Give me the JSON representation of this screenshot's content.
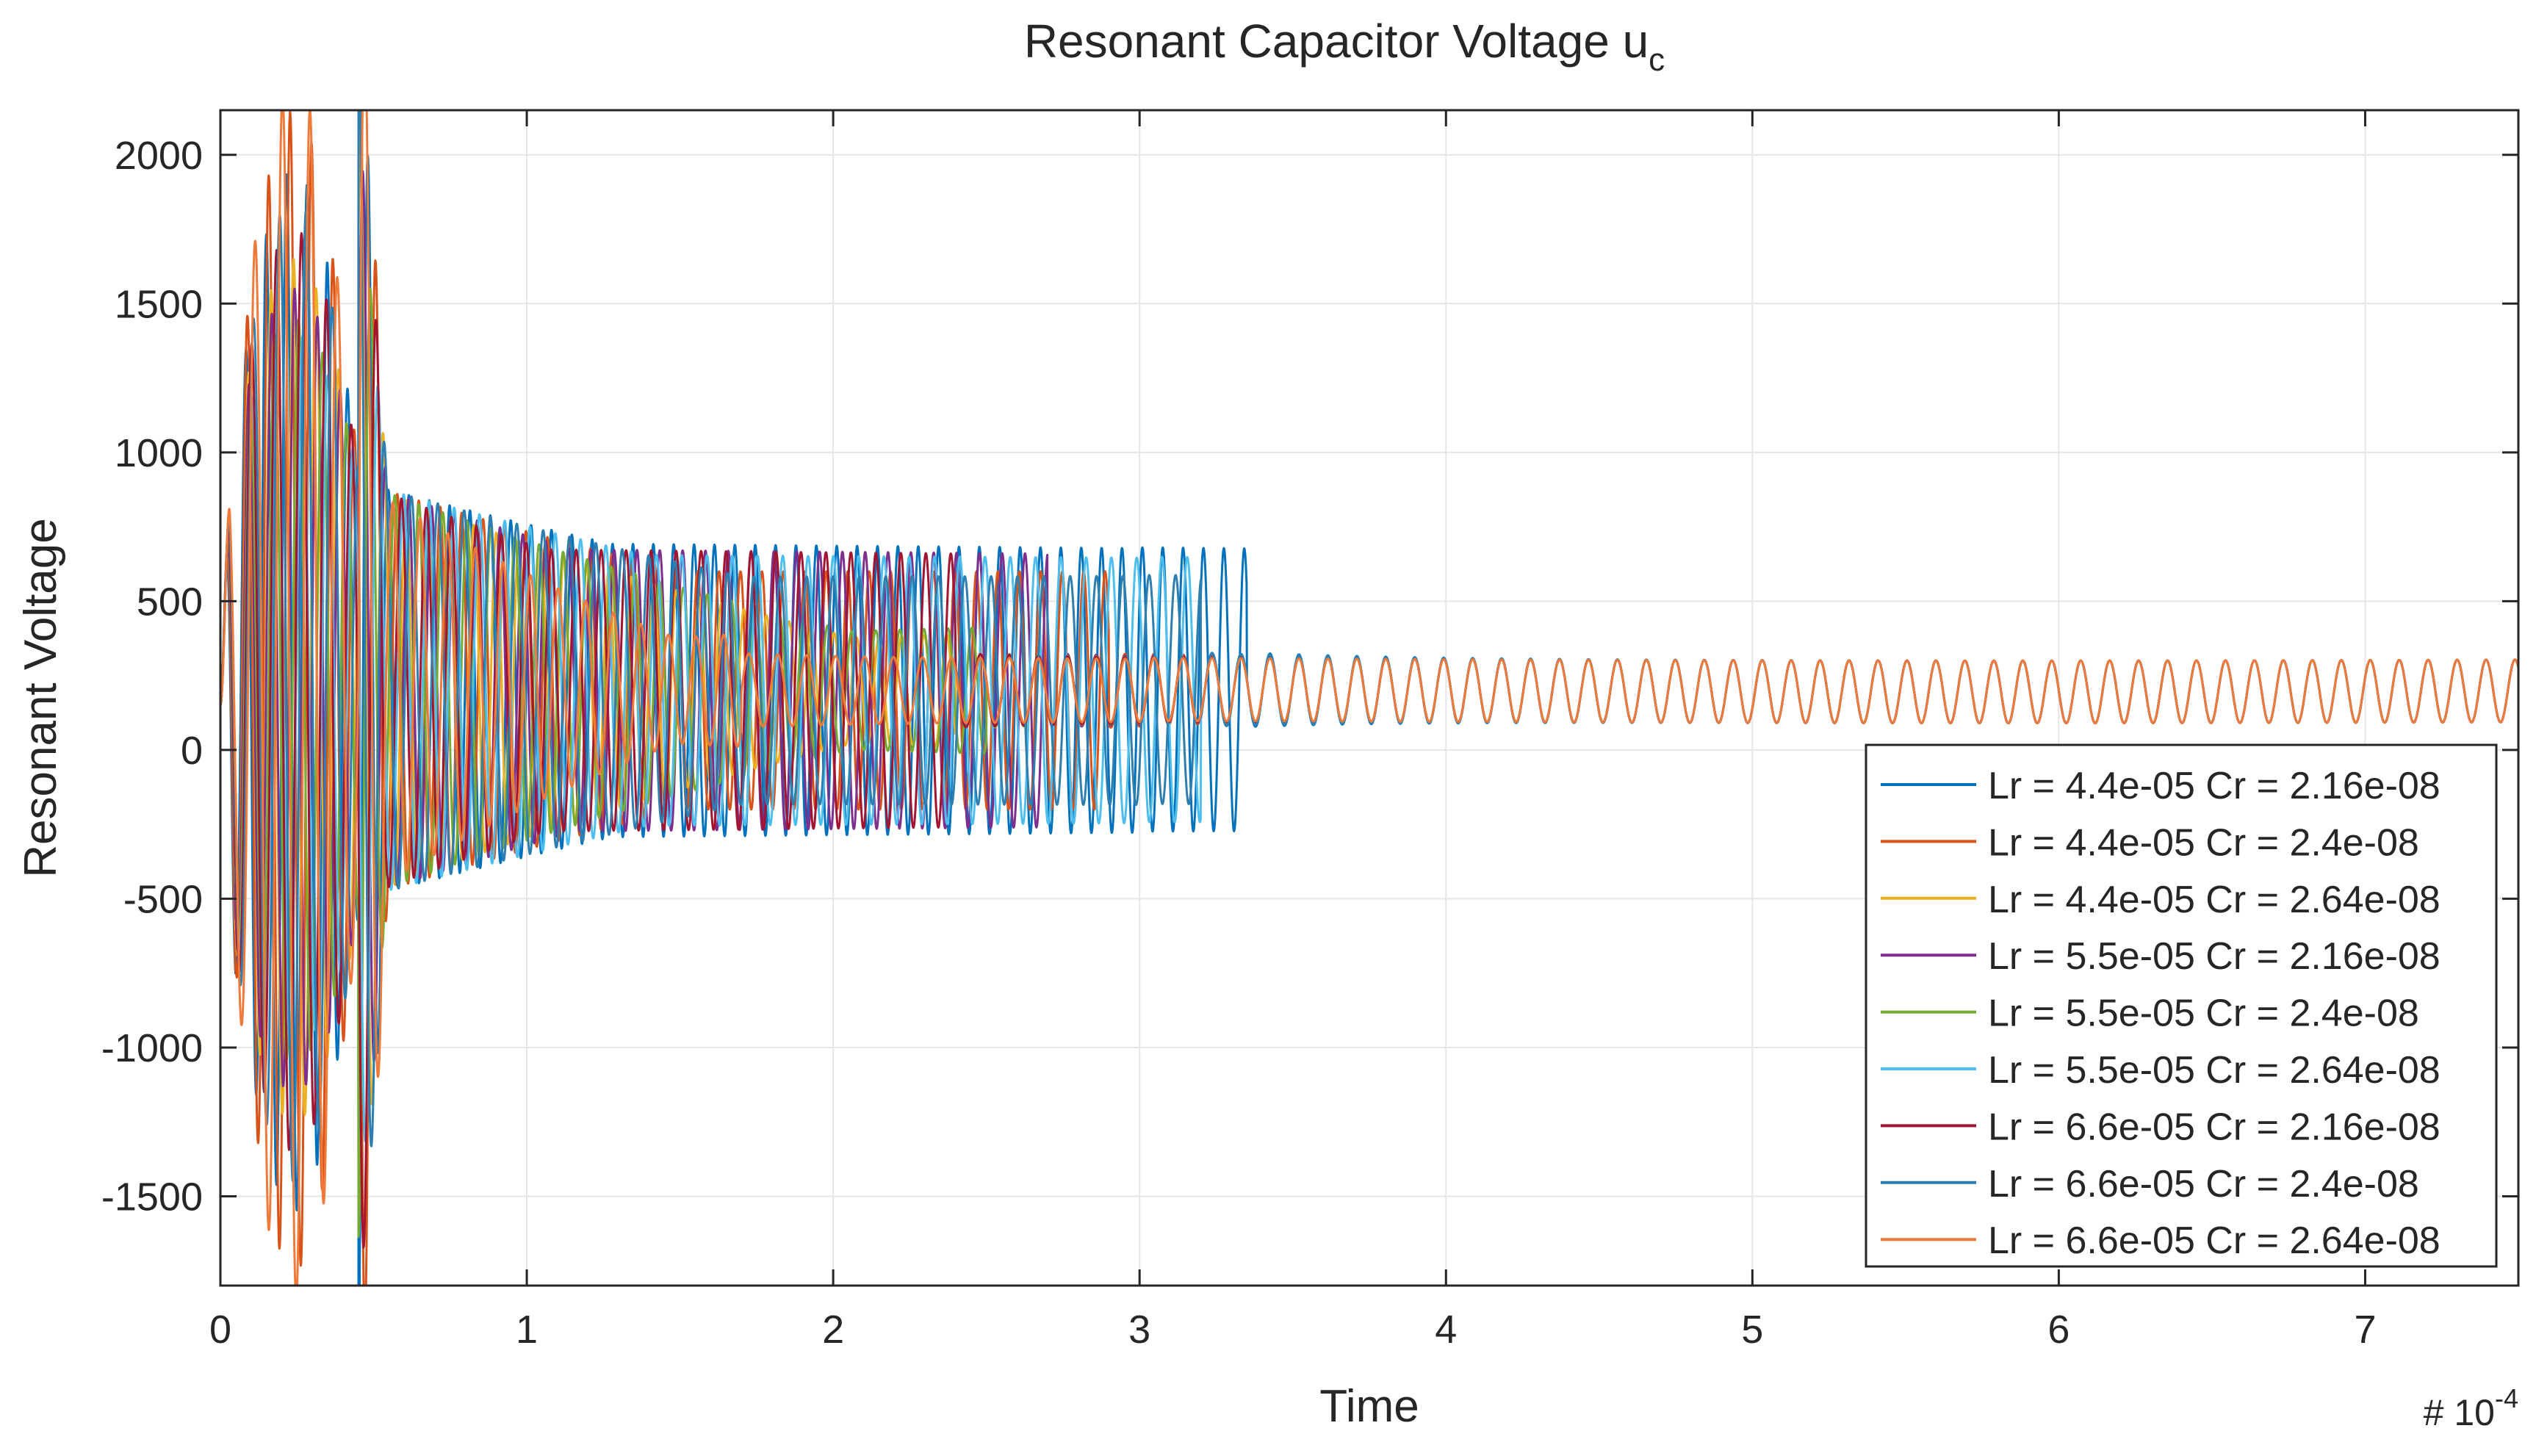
{
  "chart_data": {
    "type": "line",
    "title": "Resonant Capacitor Voltage u",
    "title_subscript": "c",
    "xlabel": "Time",
    "ylabel": "Resonant Voltage",
    "x_multiplier_prefix": "# 10",
    "x_multiplier_exponent": "-4",
    "xlim": [
      0,
      7.5
    ],
    "ylim": [
      -1800,
      2150
    ],
    "x_ticks": [
      0,
      1,
      2,
      3,
      4,
      5,
      6,
      7
    ],
    "y_ticks": [
      2000,
      1500,
      1000,
      500,
      0,
      -500,
      -1000,
      -1500
    ],
    "grid": true,
    "legend_position": "bottom-right",
    "series": [
      {
        "name": "Lr = 4.4e-05 Cr = 2.16e-08",
        "color": "#0072BD",
        "params": {
          "period": 0.0665,
          "steady_period": 0.0945,
          "peak": 1750,
          "mid_amp": 500,
          "settle": 3.35
        }
      },
      {
        "name": "Lr = 4.4e-05 Cr = 2.4e-08",
        "color": "#D95319",
        "params": {
          "period": 0.07,
          "steady_period": 0.0945,
          "peak": 1950,
          "mid_amp": 400,
          "settle": 2.9
        }
      },
      {
        "name": "Lr = 4.4e-05 Cr = 2.64e-08",
        "color": "#EDB120",
        "params": {
          "period": 0.0735,
          "steady_period": 0.0945,
          "peak": 1450,
          "mid_amp": 120,
          "settle": 2.4
        }
      },
      {
        "name": "Lr = 5.5e-05 Cr = 2.16e-08",
        "color": "#7E2F8E",
        "params": {
          "period": 0.0745,
          "steady_period": 0.0945,
          "peak": 1350,
          "mid_amp": 480,
          "settle": 2.7
        }
      },
      {
        "name": "Lr = 5.5e-05 Cr = 2.4e-08",
        "color": "#77AC30",
        "params": {
          "period": 0.0785,
          "steady_period": 0.0945,
          "peak": 1250,
          "mid_amp": 150,
          "settle": 2.5
        }
      },
      {
        "name": "Lr = 5.5e-05 Cr = 2.64e-08",
        "color": "#4DBEEE",
        "params": {
          "period": 0.0825,
          "steady_period": 0.0945,
          "peak": 1200,
          "mid_amp": 460,
          "settle": 3.2
        }
      },
      {
        "name": "Lr = 6.6e-05 Cr = 2.16e-08",
        "color": "#A2142F",
        "params": {
          "period": 0.0815,
          "steady_period": 0.0945,
          "peak": 1550,
          "mid_amp": 480,
          "settle": 2.4
        }
      },
      {
        "name": "Lr = 6.6e-05 Cr = 2.4e-08",
        "color": "#2E7FB0",
        "params": {
          "period": 0.086,
          "steady_period": 0.0945,
          "peak": 1650,
          "mid_amp": 380,
          "settle": 3.2
        }
      },
      {
        "name": "Lr = 6.6e-05 Cr = 2.64e-08",
        "color": "#F07A3A",
        "params": {
          "period": 0.09,
          "steady_period": 0.0945,
          "peak": 2050,
          "mid_amp": 120,
          "settle": 1.7
        }
      }
    ]
  }
}
